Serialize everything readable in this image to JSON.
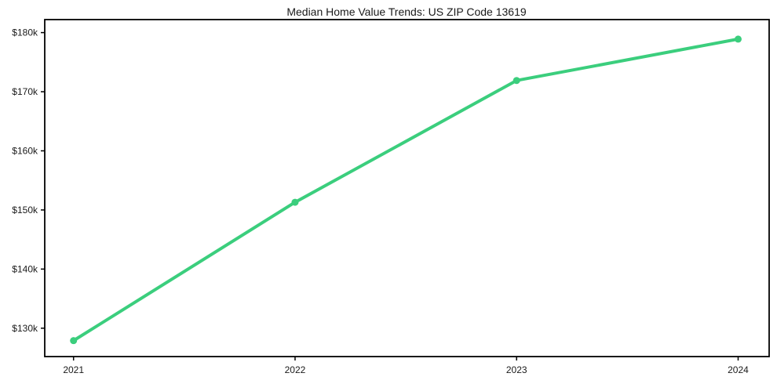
{
  "chart_data": {
    "type": "line",
    "title": "Median Home Value Trends: US ZIP Code 13619",
    "x": [
      2021,
      2022,
      2023,
      2024
    ],
    "x_tick_labels": [
      "2021",
      "2022",
      "2023",
      "2024"
    ],
    "y_ticks": [
      130000,
      140000,
      150000,
      160000,
      170000,
      180000
    ],
    "y_tick_labels": [
      "$130k",
      "$140k",
      "$150k",
      "$160k",
      "$170k",
      "$180k"
    ],
    "series": [
      {
        "name": "Median Home Value",
        "values": [
          127900,
          151300,
          171900,
          178900
        ]
      }
    ],
    "xlabel": "",
    "ylabel": "",
    "xlim": [
      2020.87,
      2024.14
    ],
    "ylim": [
      125200,
      182200
    ],
    "grid": false,
    "legend_position": "none",
    "marker": "circle"
  },
  "colors": {
    "line": "#3bce7d",
    "axis": "#000000",
    "text": "#1a1a1a",
    "background": "#ffffff"
  }
}
